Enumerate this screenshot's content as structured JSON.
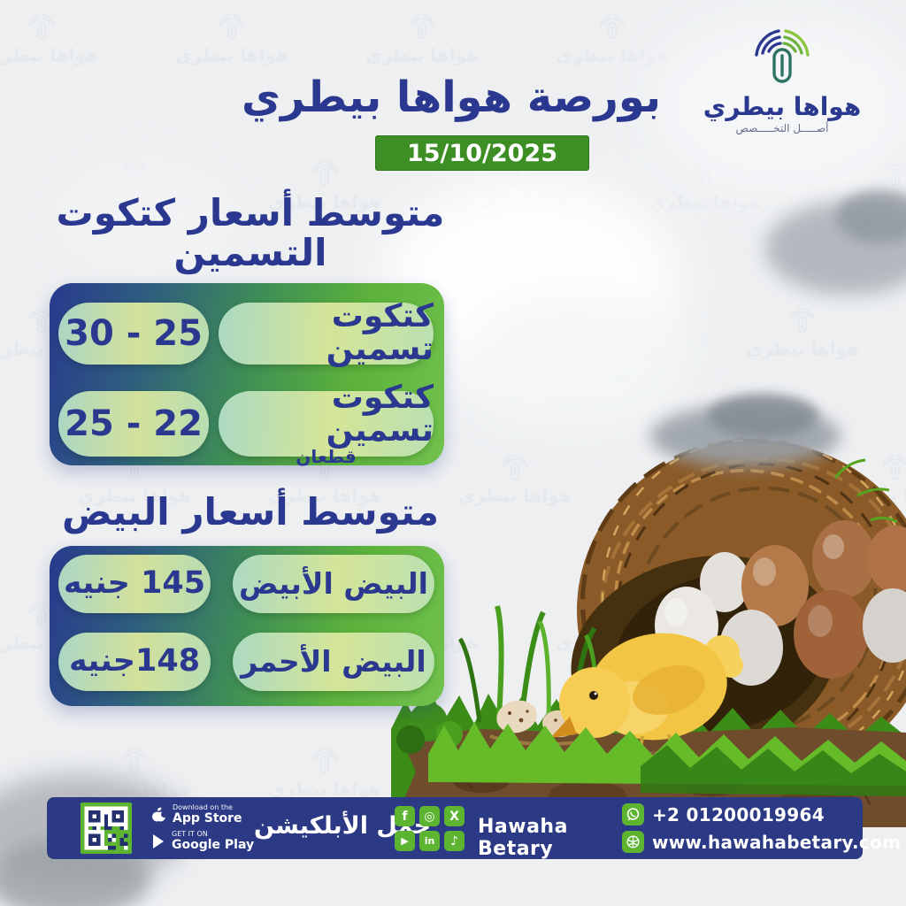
{
  "colors": {
    "bg": "#edeff1",
    "navy": "#2b3890",
    "navy-bar": "#2c3a86",
    "green": "#5cb431",
    "badge-green": "#3e8e26",
    "panel-blue": "#283a8e",
    "panel-green": "#71c24d",
    "pill-green": "#dbe89c",
    "pill-teal": "#b2dec7"
  },
  "logo": {
    "name": "هواها بيطري",
    "tagline": "أصـــــل التخـــــصص"
  },
  "header": {
    "title": "بورصة هواها بيطري",
    "date": "15/10/2025"
  },
  "sections": [
    {
      "title_line1": "متوسط أسعار كتكوت",
      "title_line2": "التسمين",
      "rows": [
        {
          "label": "كتكوت تسمين",
          "sublabel": "",
          "value": "25 - 30"
        },
        {
          "label": "كتكوت تسمين",
          "sublabel": "قطعان",
          "value": "22 - 25"
        }
      ]
    },
    {
      "title_line1": "متوسط أسعار البيض",
      "title_line2": "",
      "rows": [
        {
          "label": "البيض الأبيض",
          "sublabel": "",
          "value": "145 جنيه"
        },
        {
          "label": "البيض الأحمر",
          "sublabel": "",
          "value": "148جنيه"
        }
      ]
    }
  ],
  "footer": {
    "download_label": "حمل الأبلكيشن",
    "appstore_small": "Download on the",
    "appstore_big": "App Store",
    "googleplay_small": "GET IT ON",
    "googleplay_big": "Google Play",
    "brand": "Hawaha Betary",
    "phone": "+2 01200019964",
    "website": "www.hawahabetary.com",
    "icons": {
      "facebook": "f",
      "instagram": "◎",
      "x": "X",
      "youtube": "▶",
      "linkedin": "in",
      "tiktok": "♪"
    }
  },
  "background": {
    "watermark_text": "هواها بيطري"
  }
}
